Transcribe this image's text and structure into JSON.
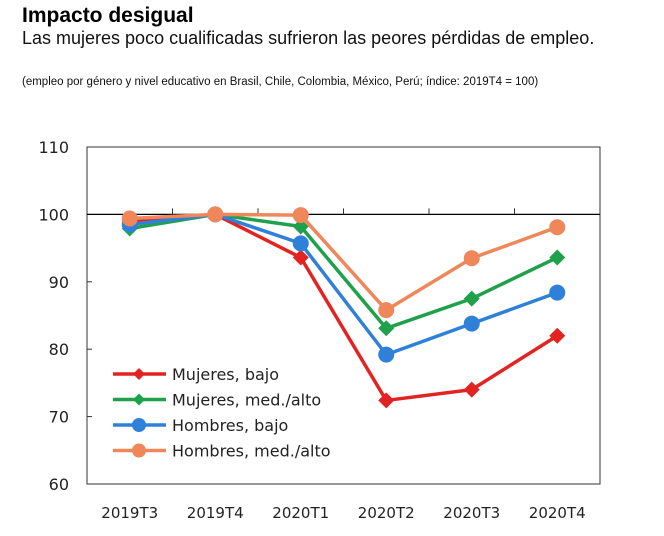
{
  "title": "Impacto desigual",
  "subtitle": "Las mujeres poco cualificadas sufrieron las peores pérdidas de empleo.",
  "note": "(empleo por género y nivel educativo en Brasil, Chile, Colombia, México, Perú; índice: 2019T4 = 100)",
  "chart_data": {
    "type": "line",
    "categories": [
      "2019T3",
      "2019T4",
      "2020T1",
      "2020T2",
      "2020T3",
      "2020T4"
    ],
    "ylim": [
      60,
      110
    ],
    "yticks": [
      60,
      70,
      80,
      90,
      100,
      110
    ],
    "reference_line": 100,
    "grid": false,
    "legend_position": "bottom-left",
    "series": [
      {
        "name": "Mujeres, bajo",
        "color": "#e32322",
        "marker": "diamond",
        "values": [
          98.9,
          100,
          93.6,
          72.4,
          74.0,
          82.0
        ]
      },
      {
        "name": "Mujeres, med./alto",
        "color": "#1fa04a",
        "marker": "diamond",
        "values": [
          97.9,
          100,
          98.2,
          83.1,
          87.5,
          93.6
        ]
      },
      {
        "name": "Hombres, bajo",
        "color": "#2f80d9",
        "marker": "circle",
        "values": [
          98.5,
          100,
          95.7,
          79.2,
          83.8,
          88.4
        ]
      },
      {
        "name": "Hombres, med./alto",
        "color": "#f0875a",
        "marker": "circle",
        "values": [
          99.4,
          100,
          99.9,
          85.8,
          93.5,
          98.1
        ]
      }
    ]
  }
}
